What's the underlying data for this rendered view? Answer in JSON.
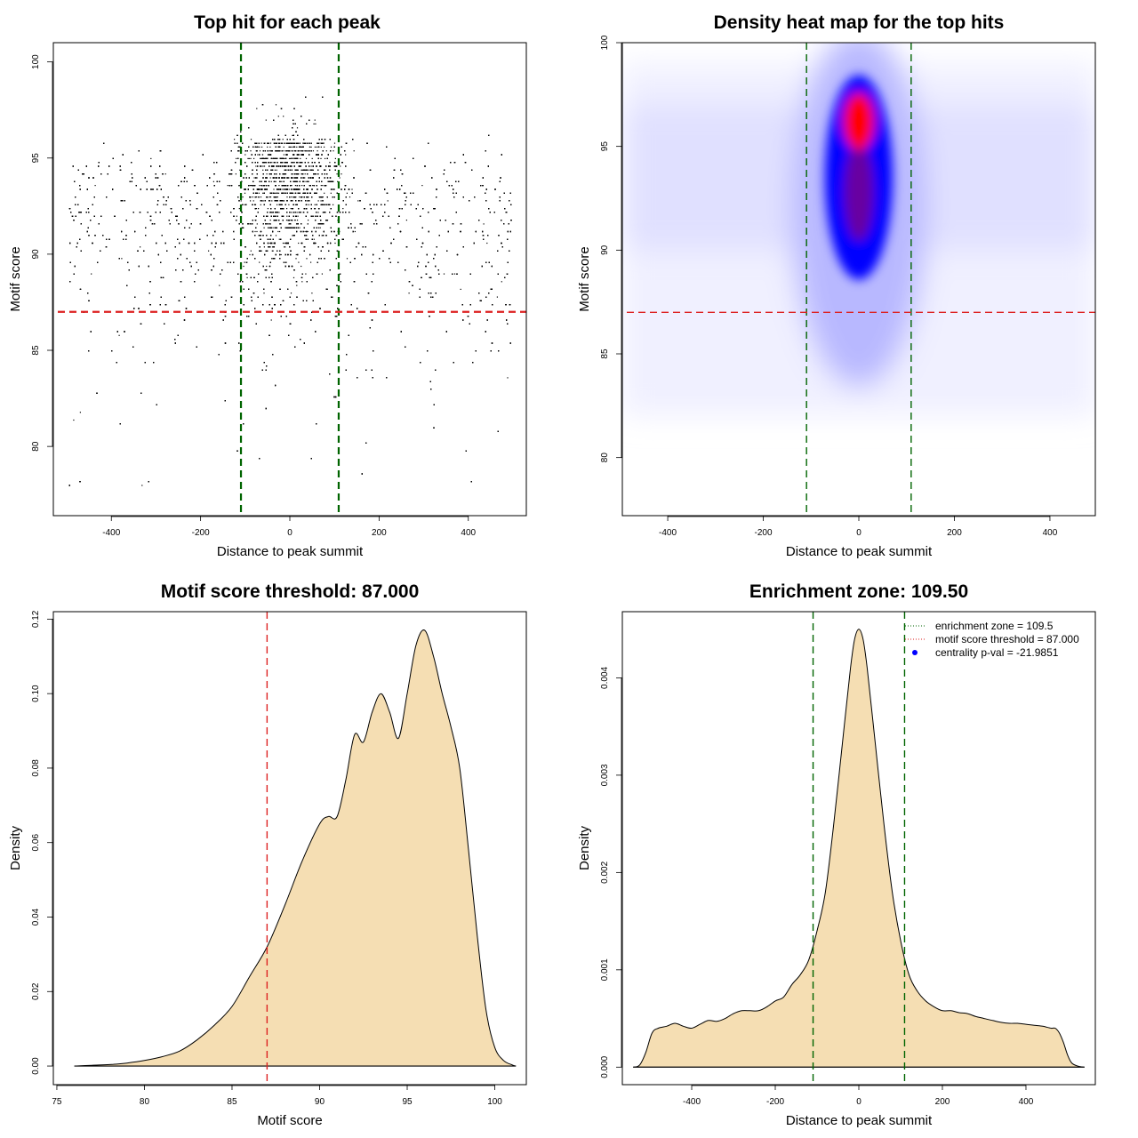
{
  "chart_data": [
    {
      "type": "scatter",
      "title": "Top hit for each peak",
      "xlabel": "Distance to peak summit",
      "ylabel": "Motif score",
      "xlim": [
        -530,
        530
      ],
      "ylim": [
        76.4,
        101.0
      ],
      "xticks": [
        -400,
        -200,
        0,
        200,
        400
      ],
      "yticks": [
        80,
        85,
        90,
        95,
        100
      ],
      "hlines": [
        {
          "y": 87.0,
          "color": "#dd2222",
          "style": "dashed"
        }
      ],
      "vlines": [
        {
          "x": -109.5,
          "color": "#006400",
          "style": "dashed"
        },
        {
          "x": 109.5,
          "color": "#006400",
          "style": "dashed"
        }
      ],
      "points": {
        "x_range": [
          -495,
          495
        ],
        "y_range": [
          77.2,
          99.9
        ],
        "central_peak_x": 0,
        "central_peak_y": 96.0,
        "n_points_approx": 12000
      }
    },
    {
      "type": "heatmap",
      "title": "Density heat map for the top hits",
      "xlabel": "Distance to peak summit",
      "ylabel": "Motif score",
      "xlim": [
        -495,
        495
      ],
      "ylim": [
        77.2,
        100.0
      ],
      "xticks": [
        -400,
        -200,
        0,
        200,
        400
      ],
      "yticks": [
        80,
        85,
        90,
        95,
        100
      ],
      "hlines": [
        {
          "y": 87.0,
          "color": "#dd2222",
          "style": "dashed"
        }
      ],
      "vlines": [
        {
          "x": -109.5,
          "color": "#006400",
          "style": "dashed"
        },
        {
          "x": 109.5,
          "color": "#006400",
          "style": "dashed"
        }
      ],
      "colors": [
        "#ffffff",
        "#0000ff",
        "#ff0000"
      ],
      "hotspot": {
        "x": 0,
        "y": 96.2
      }
    },
    {
      "type": "area",
      "title": "Motif score threshold: 87.000",
      "xlabel": "Motif score",
      "ylabel": "Density",
      "xlim": [
        74.8,
        101.8
      ],
      "ylim": [
        -0.005,
        0.122
      ],
      "xticks": [
        75,
        80,
        85,
        90,
        95,
        100
      ],
      "yticks": [
        0.0,
        0.02,
        0.04,
        0.06,
        0.08,
        0.1,
        0.12
      ],
      "ytick_labels": [
        "0.00",
        "0.02",
        "0.04",
        "0.06",
        "0.08",
        "0.10",
        "0.12"
      ],
      "fill": "#f5deb3",
      "vlines": [
        {
          "x": 87.0,
          "color": "#dd2222",
          "style": "dashed"
        }
      ],
      "x": [
        76,
        77,
        78,
        79,
        80,
        81,
        82,
        83,
        84,
        85,
        86,
        87,
        88,
        89,
        90,
        90.5,
        91,
        91.5,
        92,
        92.5,
        93,
        93.5,
        94,
        94.5,
        95,
        95.5,
        96,
        96.5,
        97,
        97.5,
        98,
        98.5,
        99,
        99.5,
        100,
        100.5,
        101,
        101.2
      ],
      "values": [
        0.0,
        0.0002,
        0.0004,
        0.0008,
        0.0015,
        0.0025,
        0.004,
        0.007,
        0.011,
        0.016,
        0.024,
        0.032,
        0.043,
        0.055,
        0.065,
        0.067,
        0.067,
        0.077,
        0.089,
        0.087,
        0.095,
        0.1,
        0.095,
        0.088,
        0.1,
        0.113,
        0.117,
        0.11,
        0.1,
        0.091,
        0.08,
        0.058,
        0.035,
        0.015,
        0.005,
        0.0015,
        0.0003,
        0.0
      ]
    },
    {
      "type": "area",
      "title": "Enrichment zone: 109.50",
      "xlabel": "Distance to peak summit",
      "ylabel": "Density",
      "xlim": [
        -566,
        566
      ],
      "ylim": [
        -0.00018,
        0.00468
      ],
      "xticks": [
        -400,
        -200,
        0,
        200,
        400
      ],
      "yticks": [
        0.0,
        0.001,
        0.002,
        0.003,
        0.004
      ],
      "ytick_labels": [
        "0.000",
        "0.001",
        "0.002",
        "0.003",
        "0.004"
      ],
      "fill": "#f5deb3",
      "vlines": [
        {
          "x": -109.5,
          "color": "#006400",
          "style": "dashed"
        },
        {
          "x": 109.5,
          "color": "#006400",
          "style": "dashed"
        }
      ],
      "x": [
        -540,
        -525,
        -510,
        -495,
        -480,
        -460,
        -440,
        -420,
        -400,
        -380,
        -360,
        -340,
        -320,
        -300,
        -280,
        -260,
        -240,
        -220,
        -200,
        -180,
        -160,
        -140,
        -120,
        -100,
        -80,
        -60,
        -40,
        -20,
        -10,
        0,
        10,
        20,
        40,
        60,
        80,
        100,
        120,
        140,
        160,
        180,
        200,
        220,
        240,
        260,
        280,
        300,
        320,
        340,
        360,
        380,
        400,
        420,
        440,
        460,
        470,
        480,
        490,
        500,
        510,
        525,
        540
      ],
      "values": [
        0.0,
        2e-05,
        0.00015,
        0.00035,
        0.0004,
        0.00042,
        0.00045,
        0.00042,
        0.0004,
        0.00044,
        0.00048,
        0.00047,
        0.0005,
        0.00055,
        0.00058,
        0.00058,
        0.00058,
        0.00062,
        0.00068,
        0.00072,
        0.00085,
        0.00095,
        0.0011,
        0.0014,
        0.0018,
        0.0025,
        0.0033,
        0.0041,
        0.0044,
        0.0045,
        0.0044,
        0.0041,
        0.0033,
        0.0025,
        0.0018,
        0.0013,
        0.00095,
        0.00078,
        0.00068,
        0.00062,
        0.00058,
        0.00058,
        0.00056,
        0.00055,
        0.00052,
        0.0005,
        0.00048,
        0.00046,
        0.00045,
        0.00045,
        0.00044,
        0.00043,
        0.00042,
        0.0004,
        0.0004,
        0.00035,
        0.00025,
        0.00012,
        4e-05,
        1e-05,
        0.0
      ],
      "legend": {
        "position": "top-right",
        "items": [
          {
            "label": "enrichment zone = 109.5",
            "color": "#006400",
            "kind": "dotted-line"
          },
          {
            "label": "motif score threshold = 87.000",
            "color": "#dd2222",
            "kind": "dotted-line"
          },
          {
            "label": "centrality p-val = -21.9851",
            "color": "#0000ff",
            "kind": "point"
          }
        ]
      }
    }
  ]
}
